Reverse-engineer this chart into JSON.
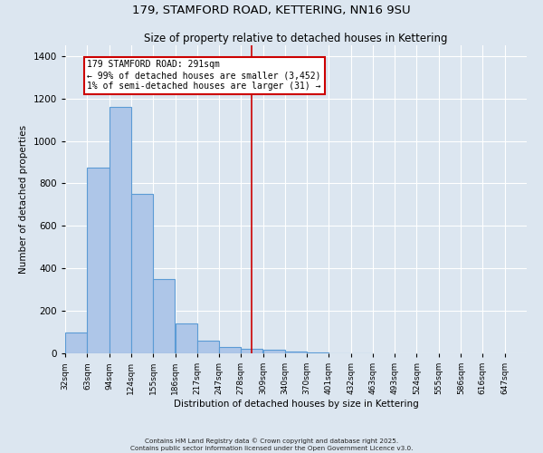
{
  "title": "179, STAMFORD ROAD, KETTERING, NN16 9SU",
  "subtitle": "Size of property relative to detached houses in Kettering",
  "xlabel": "Distribution of detached houses by size in Kettering",
  "ylabel": "Number of detached properties",
  "bar_color": "#aec6e8",
  "bar_edge_color": "#5b9bd5",
  "background_color": "#dce6f0",
  "grid_color": "#ffffff",
  "categories": [
    "32sqm",
    "63sqm",
    "94sqm",
    "124sqm",
    "155sqm",
    "186sqm",
    "217sqm",
    "247sqm",
    "278sqm",
    "309sqm",
    "340sqm",
    "370sqm",
    "401sqm",
    "432sqm",
    "463sqm",
    "493sqm",
    "524sqm",
    "555sqm",
    "586sqm",
    "616sqm",
    "647sqm"
  ],
  "values": [
    100,
    875,
    1160,
    750,
    350,
    140,
    60,
    30,
    20,
    15,
    10,
    5,
    2,
    1,
    0,
    0,
    0,
    0,
    0,
    0,
    0
  ],
  "property_line_color": "#cc0000",
  "annotation_text": "179 STAMFORD ROAD: 291sqm\n← 99% of detached houses are smaller (3,452)\n1% of semi-detached houses are larger (31) →",
  "annotation_box_color": "#cc0000",
  "ylim": [
    0,
    1450
  ],
  "bin_width": 31,
  "footnote1": "Contains HM Land Registry data © Crown copyright and database right 2025.",
  "footnote2": "Contains public sector information licensed under the Open Government Licence v3.0."
}
